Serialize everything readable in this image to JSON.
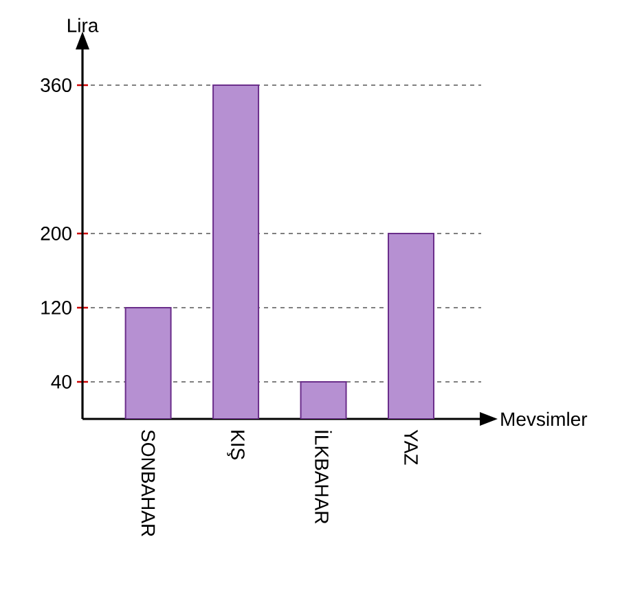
{
  "chart_data": {
    "type": "bar",
    "xlabel": "Mevsimler",
    "ylabel": "Lira",
    "categories": [
      "SONBAHAR",
      "KIŞ",
      "İLKBAHAR",
      "YAZ"
    ],
    "values": [
      120,
      360,
      40,
      200
    ],
    "color": "#b690d2",
    "ylim": [
      0,
      400
    ],
    "yticks": [
      40,
      120,
      200,
      360
    ],
    "grid": "y"
  }
}
